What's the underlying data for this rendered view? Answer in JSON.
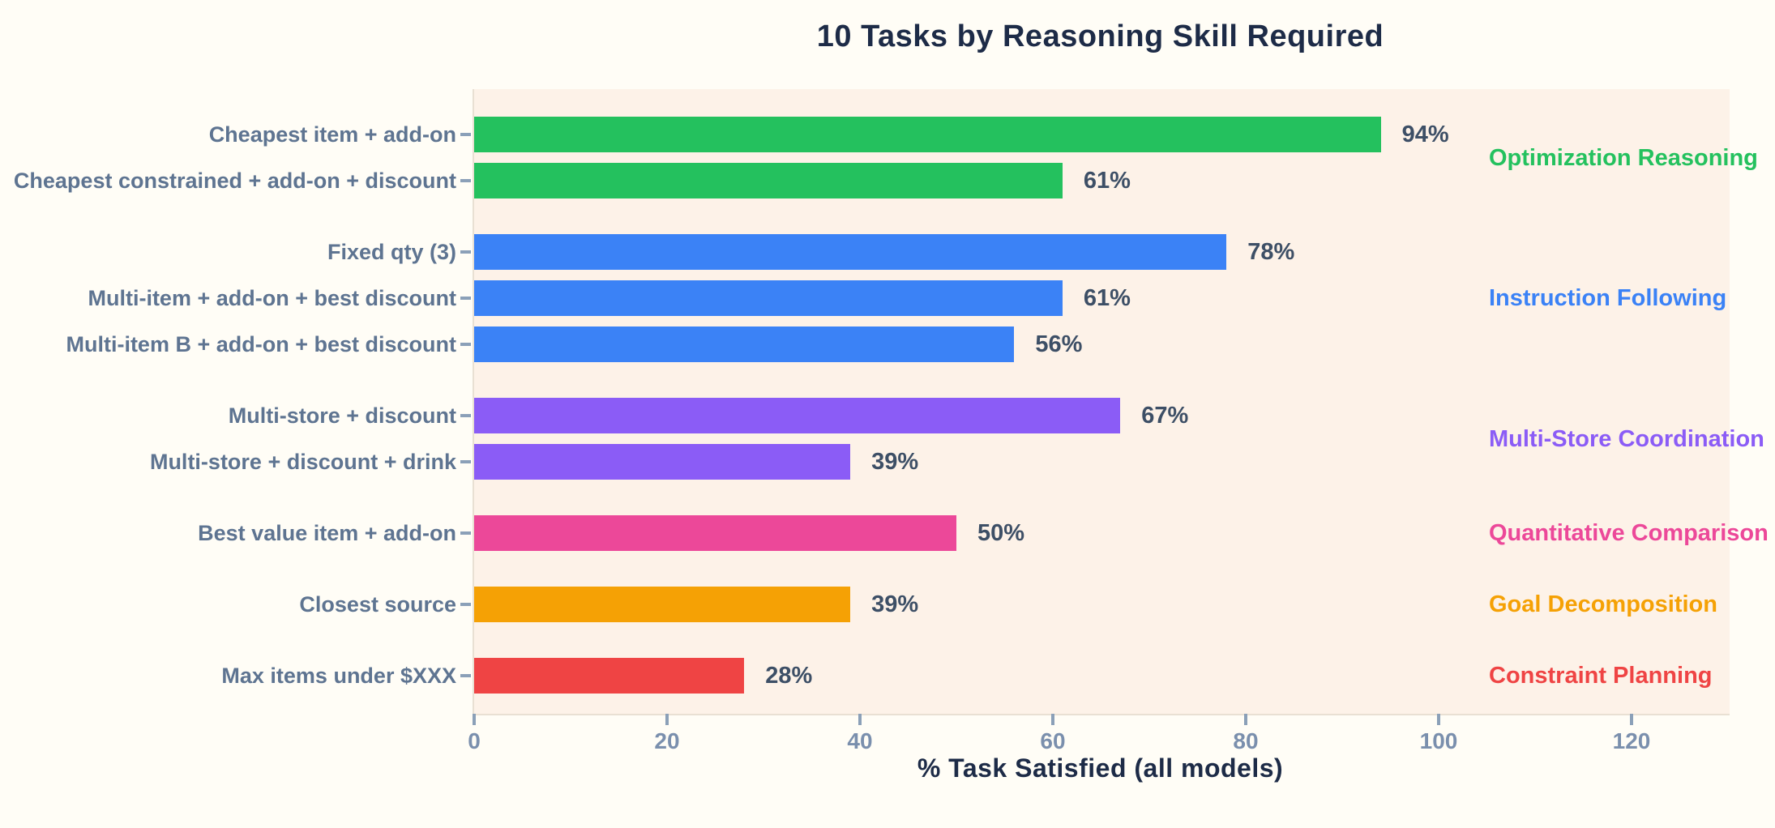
{
  "title": "10 Tasks by Reasoning Skill Required",
  "colors": {
    "page_background": "#fffdf6",
    "plot_background": "#fdf2e8",
    "axis_line": "#e9e0d3",
    "title_text": "#1d2b47",
    "value_label_text": "#3d4f66",
    "task_label_text": "#5e7491",
    "tick_label_text": "#7a8fad",
    "tick_mark": "#8ba0b8"
  },
  "chart_data": {
    "type": "bar",
    "orientation": "horizontal",
    "title": "10 Tasks by Reasoning Skill Required",
    "xlabel": "% Task Satisfied (all models)",
    "ylabel": "",
    "xlim": [
      0,
      130
    ],
    "xticks": [
      0,
      20,
      40,
      60,
      80,
      100,
      120
    ],
    "grid": false,
    "value_suffix": "%",
    "legend_position": "right-of-bars",
    "categories": [
      "Cheapest item + add-on",
      "Cheapest constrained + add-on + discount",
      "Fixed qty (3)",
      "Multi-item + add-on + best discount",
      "Multi-item B + add-on + best discount",
      "Multi-store + discount",
      "Multi-store + discount + drink",
      "Best value item + add-on",
      "Closest source",
      "Max items under $XXX"
    ],
    "values": [
      94,
      61,
      78,
      61,
      56,
      67,
      39,
      50,
      39,
      28
    ],
    "groups": [
      {
        "skill": "Optimization Reasoning",
        "color": "#24c15e",
        "tasks": [
          {
            "label": "Cheapest item + add-on",
            "value": 94,
            "value_label": "94%"
          },
          {
            "label": "Cheapest constrained + add-on + discount",
            "value": 61,
            "value_label": "61%"
          }
        ]
      },
      {
        "skill": "Instruction Following",
        "color": "#3b82f6",
        "tasks": [
          {
            "label": "Fixed qty (3)",
            "value": 78,
            "value_label": "78%"
          },
          {
            "label": "Multi-item + add-on + best discount",
            "value": 61,
            "value_label": "61%"
          },
          {
            "label": "Multi-item B + add-on + best discount",
            "value": 56,
            "value_label": "56%"
          }
        ]
      },
      {
        "skill": "Multi-Store Coordination",
        "color": "#8b5cf6",
        "tasks": [
          {
            "label": "Multi-store + discount",
            "value": 67,
            "value_label": "67%"
          },
          {
            "label": "Multi-store + discount + drink",
            "value": 39,
            "value_label": "39%"
          }
        ]
      },
      {
        "skill": "Quantitative Comparison",
        "color": "#ec4899",
        "tasks": [
          {
            "label": "Best value item + add-on",
            "value": 50,
            "value_label": "50%"
          }
        ]
      },
      {
        "skill": "Goal Decomposition",
        "color": "#f5a105",
        "tasks": [
          {
            "label": "Closest source",
            "value": 39,
            "value_label": "39%"
          }
        ]
      },
      {
        "skill": "Constraint Planning",
        "color": "#ef4444",
        "tasks": [
          {
            "label": "Max items under $XXX",
            "value": 28,
            "value_label": "28%"
          }
        ]
      }
    ]
  }
}
